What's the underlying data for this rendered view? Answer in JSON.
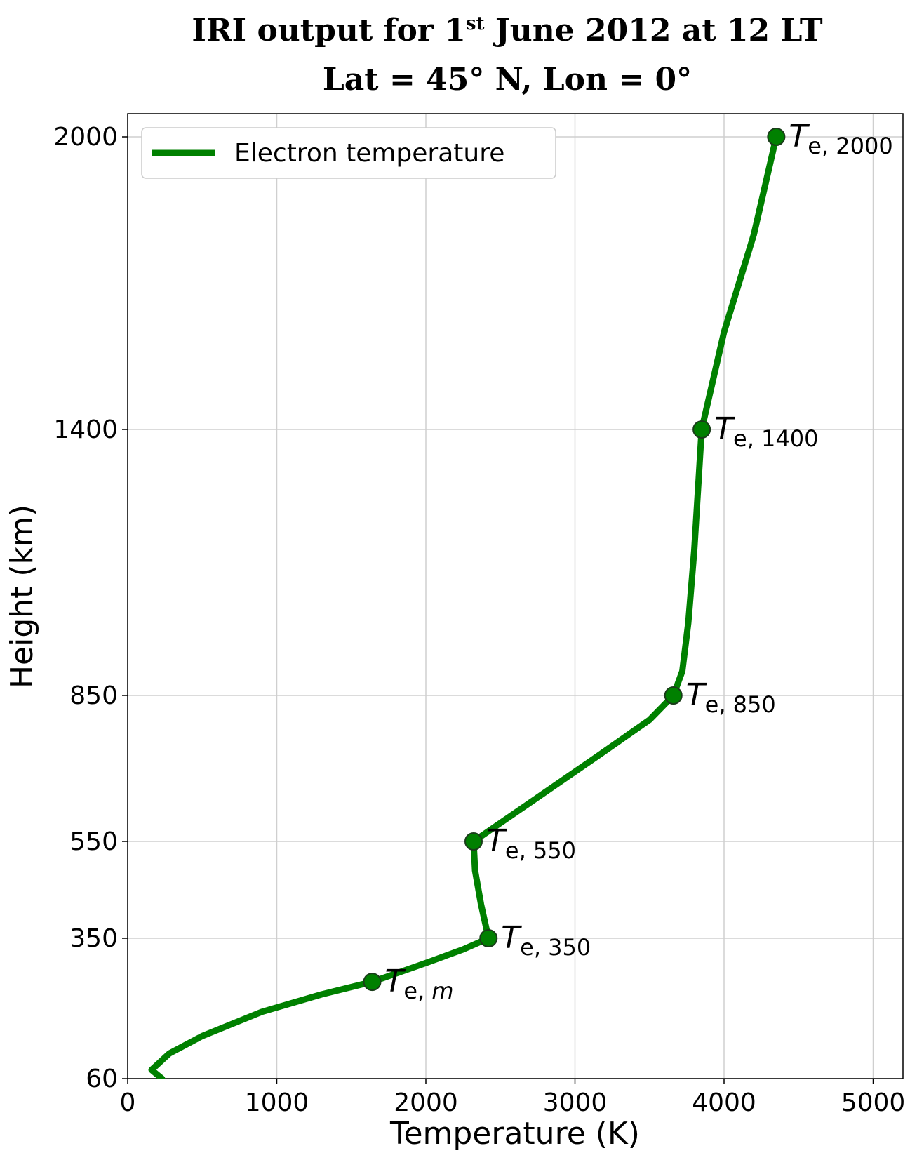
{
  "chart_data": {
    "type": "line",
    "title_line1_prefix": "IRI output for 1",
    "title_line1_sup": "st",
    "title_line1_suffix": " June 2012 at 12 LT",
    "title_line2": "Lat = 45° N, Lon = 0°",
    "xlabel": "Temperature (K)",
    "ylabel": "Height (km)",
    "xlim": [
      0,
      5200
    ],
    "x_ticks": [
      0,
      1000,
      2000,
      3000,
      4000,
      5000
    ],
    "x_tick_labels": [
      "0",
      "1000",
      "2000",
      "3000",
      "4000",
      "5000"
    ],
    "y_ticks": [
      60,
      350,
      550,
      850,
      1400,
      2000
    ],
    "y_tick_labels": [
      "60",
      "350",
      "550",
      "850",
      "1400",
      "2000"
    ],
    "y_scale_note": "nonlinear (piecewise between labeled ticks)",
    "grid": true,
    "legend_position": "top-left",
    "line_color": "#008000",
    "marker_color": "#008000",
    "series": [
      {
        "name": "Electron temperature",
        "points": [
          [
            230,
            60
          ],
          [
            160,
            78
          ],
          [
            280,
            112
          ],
          [
            500,
            148
          ],
          [
            900,
            198
          ],
          [
            1300,
            234
          ],
          [
            1640,
            260
          ],
          [
            2000,
            299
          ],
          [
            2250,
            327
          ],
          [
            2420,
            350
          ],
          [
            2370,
            420
          ],
          [
            2330,
            490
          ],
          [
            2320,
            550
          ],
          [
            2700,
            630
          ],
          [
            3150,
            725
          ],
          [
            3500,
            800
          ],
          [
            3660,
            850
          ],
          [
            3720,
            900
          ],
          [
            3760,
            1000
          ],
          [
            3800,
            1150
          ],
          [
            3830,
            1300
          ],
          [
            3850,
            1400
          ],
          [
            4000,
            1600
          ],
          [
            4200,
            1800
          ],
          [
            4350,
            2000
          ]
        ]
      }
    ],
    "annotations": [
      {
        "main": "T",
        "sub": "e, ",
        "sub_var": "m",
        "x": 1640,
        "y": 260
      },
      {
        "main": "T",
        "sub": "e, 350",
        "sub_var": "",
        "x": 2420,
        "y": 350
      },
      {
        "main": "T",
        "sub": "e, 550",
        "sub_var": "",
        "x": 2320,
        "y": 550
      },
      {
        "main": "T",
        "sub": "e, 850",
        "sub_var": "",
        "x": 3660,
        "y": 850
      },
      {
        "main": "T",
        "sub": "e, 1400",
        "sub_var": "",
        "x": 3850,
        "y": 1400
      },
      {
        "main": "T",
        "sub": "e, 2000",
        "sub_var": "",
        "x": 4350,
        "y": 2000
      }
    ]
  }
}
